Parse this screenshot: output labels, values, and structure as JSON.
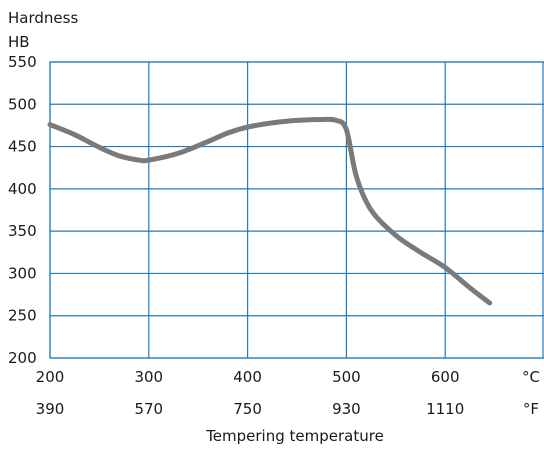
{
  "chart_data": {
    "type": "line",
    "title": "",
    "ylabel_lines": [
      "Hardness",
      "HB"
    ],
    "xlabel": "Tempering temperature",
    "x_unit_primary": "°C",
    "x_unit_secondary": "°F",
    "x_ticks_primary": [
      200,
      300,
      400,
      500,
      600
    ],
    "x_ticks_secondary": [
      "390",
      "570",
      "750",
      "930",
      "1110"
    ],
    "xlim": [
      200,
      700
    ],
    "ylim": [
      200,
      550
    ],
    "y_ticks": [
      200,
      250,
      300,
      350,
      400,
      450,
      500,
      550
    ],
    "grid": true,
    "grid_color": "#1f7bc1",
    "line_color": "#7a7a7a",
    "series": [
      {
        "x": [
          200,
          225,
          250,
          270,
          290,
          300,
          330,
          360,
          380,
          400,
          425,
          450,
          475,
          490,
          500,
          510,
          525,
          550,
          575,
          600,
          625,
          645
        ],
        "y": [
          476,
          464,
          449,
          439,
          434,
          434,
          442,
          456,
          466,
          473,
          478,
          481,
          482,
          481,
          470,
          415,
          375,
          345,
          325,
          307,
          283,
          265
        ]
      }
    ]
  }
}
